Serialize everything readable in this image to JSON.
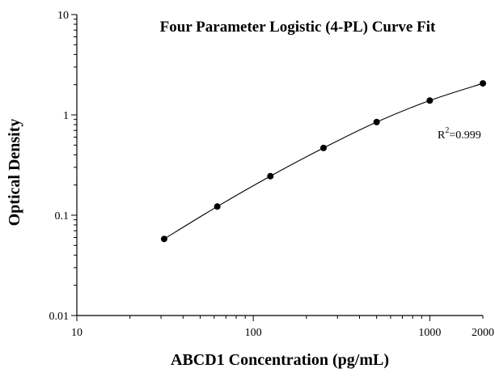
{
  "chart_data": {
    "type": "scatter",
    "title": "Four Parameter Logistic (4-PL) Curve Fit",
    "xlabel": "ABCD1 Concentration (pg/mL)",
    "ylabel": "Optical Density",
    "x_scale": "log",
    "y_scale": "log",
    "xlim": [
      10,
      2000
    ],
    "ylim": [
      0.01,
      10
    ],
    "x_ticks": [
      {
        "value": 10,
        "label": "10"
      },
      {
        "value": 100,
        "label": "100"
      },
      {
        "value": 1000,
        "label": "1000"
      },
      {
        "value": 2000,
        "label": "2000"
      }
    ],
    "y_ticks": [
      {
        "value": 0.01,
        "label": "0.01"
      },
      {
        "value": 0.1,
        "label": "0.1"
      },
      {
        "value": 1,
        "label": "1"
      },
      {
        "value": 10,
        "label": "10"
      }
    ],
    "series": [
      {
        "x": [
          31.25,
          62.5,
          125,
          250,
          500,
          1000,
          2000
        ],
        "y": [
          0.058,
          0.122,
          0.245,
          0.468,
          0.848,
          1.39,
          2.06
        ]
      }
    ],
    "fit_curve": "4-PL",
    "annotation": {
      "text": "R",
      "superscript": "2",
      "suffix": "=0.999"
    },
    "grid": false,
    "legend": "none"
  }
}
